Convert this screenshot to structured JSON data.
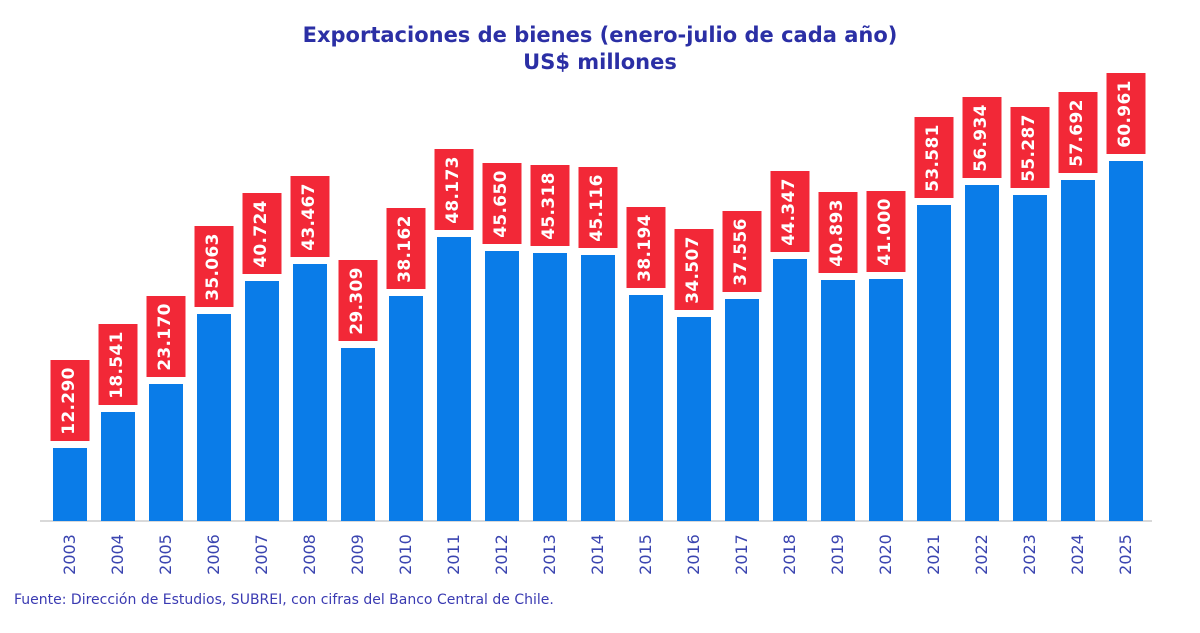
{
  "title": {
    "line1": "Exportaciones de bienes (enero-julio de cada año)",
    "line2": "US$ millones"
  },
  "footer": {
    "source": "Fuente: Dirección de Estudios, SUBREI, con cifras del Banco Central de Chile."
  },
  "colors": {
    "bar": "#0A7CE8",
    "label_bg": "#F22837",
    "label_text": "#FFFFFF",
    "title_text": "#2B2FA5",
    "axis_text": "#3A44B0",
    "source_text": "#3A3AB2",
    "baseline": "#D9D9D9"
  },
  "chart_data": {
    "type": "bar",
    "title": "Exportaciones de bienes (enero-julio de cada año)",
    "subtitle": "US$ millones",
    "xlabel": "",
    "ylabel": "",
    "ylim": [
      0,
      62000
    ],
    "grid": false,
    "legend": "none",
    "bar_color": "#0A7CE8",
    "data_label_style": "white rotated text on red box above each bar",
    "categories": [
      "2003",
      "2004",
      "2005",
      "2006",
      "2007",
      "2008",
      "2009",
      "2010",
      "2011",
      "2012",
      "2013",
      "2014",
      "2015",
      "2016",
      "2017",
      "2018",
      "2019",
      "2020",
      "2021",
      "2022",
      "2023",
      "2024",
      "2025"
    ],
    "values": [
      12290,
      18541,
      23170,
      35063,
      40724,
      43467,
      29309,
      38162,
      48173,
      45650,
      45318,
      45116,
      38194,
      34507,
      37556,
      44347,
      40893,
      41000,
      53581,
      56934,
      55287,
      57692,
      60961
    ],
    "value_labels": [
      "12.290",
      "18.541",
      "23.170",
      "35.063",
      "40.724",
      "43.467",
      "29.309",
      "38.162",
      "48.173",
      "45.650",
      "45.318",
      "45.116",
      "38.194",
      "34.507",
      "37.556",
      "44.347",
      "40.893",
      "41.000",
      "53.581",
      "56.934",
      "55.287",
      "57.692",
      "60.961"
    ]
  }
}
